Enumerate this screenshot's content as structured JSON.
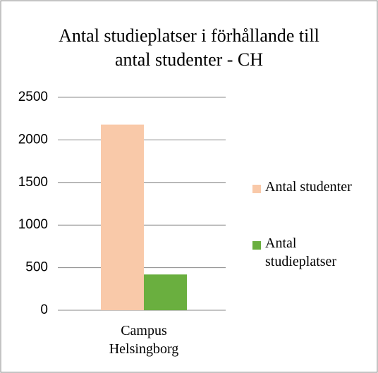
{
  "chart_data": {
    "type": "bar",
    "title": "Antal studieplatser i förhållande till antal studenter - CH",
    "categories": [
      "Campus Helsingborg"
    ],
    "series": [
      {
        "name": "Antal studenter",
        "color": "#f9c9a9",
        "values": [
          2180
        ]
      },
      {
        "name": "Antal studieplatser",
        "color": "#6aaf3f",
        "values": [
          420
        ]
      }
    ],
    "ylim": [
      0,
      2500
    ],
    "yticks": [
      0,
      500,
      1000,
      1500,
      2000,
      2500
    ],
    "grid": true,
    "legend": "right"
  }
}
